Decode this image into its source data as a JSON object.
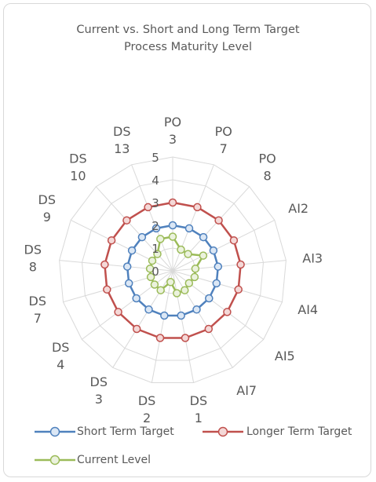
{
  "chart_data": {
    "type": "radar",
    "title_lines": [
      "Current vs. Short and Long Term Target",
      "Process Maturity Level"
    ],
    "categories": [
      [
        "PO",
        "3"
      ],
      [
        "PO",
        "7"
      ],
      [
        "PO",
        "8"
      ],
      [
        "AI2"
      ],
      [
        "AI3"
      ],
      [
        "AI4"
      ],
      [
        "AI5"
      ],
      [
        "AI7"
      ],
      [
        "DS",
        "1"
      ],
      [
        "DS",
        "2"
      ],
      [
        "DS",
        "3"
      ],
      [
        "DS",
        "4"
      ],
      [
        "DS",
        "7"
      ],
      [
        "DS",
        "8"
      ],
      [
        "DS",
        "9"
      ],
      [
        "DS",
        "10"
      ],
      [
        "DS",
        "13"
      ]
    ],
    "radial_ticks": [
      "0",
      "1",
      "2",
      "3",
      "4",
      "5"
    ],
    "rmin": 0,
    "rmax": 5,
    "grid": true,
    "legend_position": "bottom",
    "series": [
      {
        "name": "Short Term Target",
        "color": "#4f81bd",
        "values": [
          2,
          2,
          2,
          2,
          2,
          2,
          2,
          2,
          2,
          2,
          2,
          2,
          2,
          2,
          2,
          2,
          2
        ]
      },
      {
        "name": "Longer Term Target",
        "color": "#c0504d",
        "values": [
          3,
          3,
          3,
          3,
          3,
          3,
          3,
          3,
          3,
          3,
          3,
          3,
          3,
          3,
          3,
          3,
          3
        ]
      },
      {
        "name": "Current Level",
        "color": "#9bbb59",
        "values": [
          1.5,
          1,
          1,
          1.5,
          1,
          1,
          0.9,
          1,
          1,
          0.5,
          1,
          1,
          1,
          1,
          1,
          1,
          1.5
        ]
      }
    ]
  }
}
